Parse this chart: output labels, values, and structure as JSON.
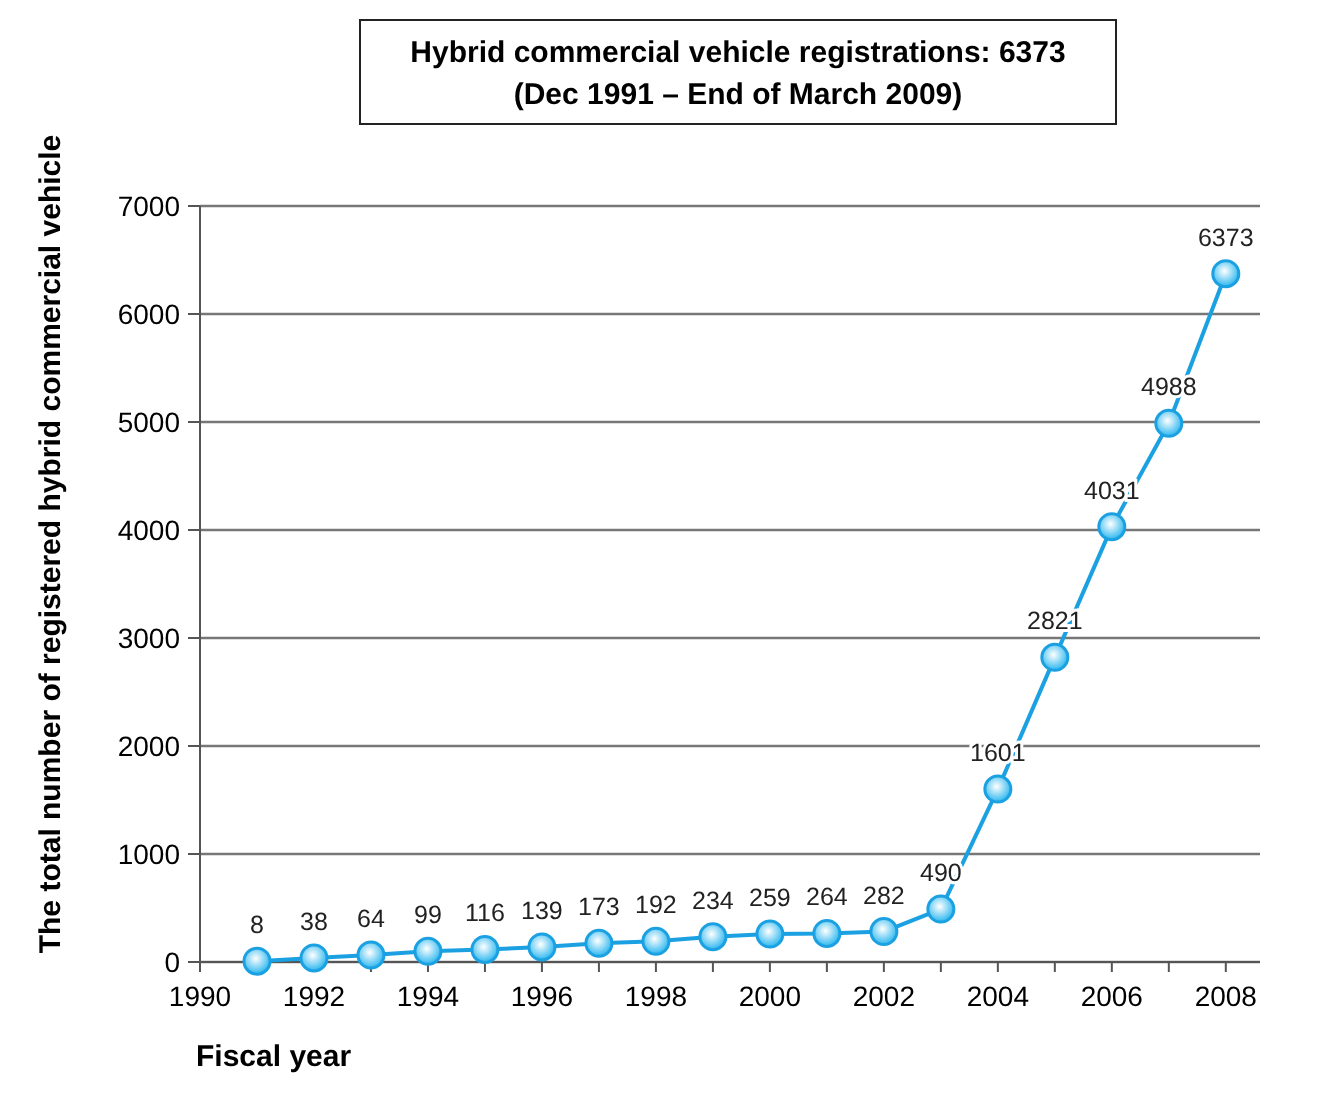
{
  "chart_data": {
    "type": "line",
    "title": "Hybrid commercial vehicle registrations: 6373",
    "subtitle": "(Dec 1991 – End of March 2009)",
    "xlabel": "Fiscal year",
    "ylabel": "The total number of registered hybrid commercial vehicle",
    "x": [
      1991,
      1992,
      1993,
      1994,
      1995,
      1996,
      1997,
      1998,
      1999,
      2000,
      2001,
      2002,
      2003,
      2004,
      2005,
      2006,
      2007,
      2008
    ],
    "series": [
      {
        "color": "#1ba1e2",
        "values": [
          8,
          38,
          64,
          99,
          116,
          139,
          173,
          192,
          234,
          259,
          264,
          282,
          490,
          1601,
          2821,
          4031,
          4988,
          6373
        ]
      }
    ],
    "xlim": [
      1990,
      2008.6
    ],
    "xticks": [
      1990,
      {
        "value": 1991,
        "label": null
      },
      1992,
      {
        "value": 1993,
        "label": null
      },
      1994,
      {
        "value": 1995,
        "label": null
      },
      1996,
      {
        "value": 1997,
        "label": null
      },
      1998,
      {
        "value": 1999,
        "label": null
      },
      2000,
      {
        "value": 2001,
        "label": null
      },
      2002,
      {
        "value": 2003,
        "label": null
      },
      2004,
      {
        "value": 2005,
        "label": null
      },
      2006,
      {
        "value": 2007,
        "label": null
      },
      2008
    ],
    "ylim": [
      0,
      7000
    ],
    "yticks": [
      0,
      1000,
      2000,
      3000,
      4000,
      5000,
      6000,
      7000
    ],
    "grid": "y",
    "marker": "circle",
    "line_style": "solid",
    "data_labels": true
  }
}
